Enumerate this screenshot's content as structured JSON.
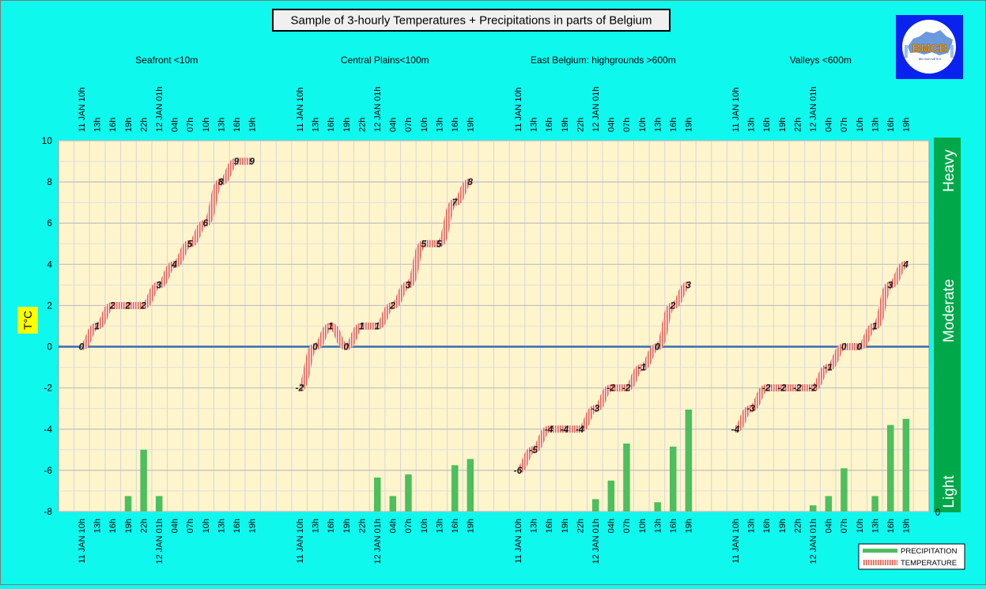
{
  "chart_data": {
    "type": "bar+line",
    "title": "Sample of 3-hourly Temperatures + Precipitations in parts of Belgium",
    "ylabel": "T°C",
    "ylim": [
      -8,
      10
    ],
    "yticks": [
      "10",
      "8",
      "6",
      "4",
      "2",
      "0",
      "-2",
      "-4",
      "-6",
      "-8"
    ],
    "right_axis_label": "0",
    "logo_text": "BMCB",
    "precip_scale_labels": [
      "Light",
      "Moderate",
      "Heavy"
    ],
    "legend": {
      "precipitation": "PRECIPITATION",
      "temperature": "TEMPERATURE"
    },
    "x_labels": [
      "11 JAN 10h",
      "13h",
      "16h",
      "19h",
      "22h",
      "12 JAN 01h",
      "04h",
      "07h",
      "10h",
      "13h",
      "16h",
      "19h"
    ],
    "grid": true,
    "legend_position": "bottom-right",
    "colors": {
      "background": "#0ef8ee",
      "plot": "#fff5cc",
      "precipitation": "#4cbf5e",
      "temperature": "#e7877a",
      "zero_line": "#3a6bb0",
      "scale_bar": "#00a84a",
      "label_box": "#ffff00",
      "logo_bg": "#0a22ee"
    },
    "groups": [
      {
        "name": "Seafront <10m",
        "temperature": [
          0,
          1,
          2,
          2,
          2,
          3,
          4,
          5,
          6,
          8,
          9,
          9
        ],
        "precipitation": [
          -8,
          -8,
          -8,
          -7.25,
          -5,
          -7.25,
          -8,
          -8,
          -8,
          -8,
          -8,
          -8
        ]
      },
      {
        "name": "Central Plains<100m",
        "temperature": [
          -2,
          0,
          1,
          0,
          1,
          1,
          2,
          3,
          5,
          5,
          7,
          8
        ],
        "precipitation": [
          -8,
          -8,
          -8,
          -8,
          -8,
          -6.35,
          -7.25,
          -6.2,
          -8,
          -8,
          -5.75,
          -5.45
        ]
      },
      {
        "name": "East Belgium:     highgrounds >600m",
        "temperature": [
          -6,
          -5,
          -4,
          -4,
          -4,
          -3,
          -2,
          -2,
          -1,
          0,
          2,
          3
        ],
        "precipitation": [
          -8,
          -8,
          -8,
          -8,
          -8,
          -7.4,
          -6.5,
          -4.7,
          -8,
          -7.55,
          -4.85,
          -3.05
        ]
      },
      {
        "name": "Valleys <600m",
        "temperature": [
          -4,
          -3,
          -2,
          -2,
          -2,
          -2,
          -1,
          0,
          0,
          1,
          3,
          4
        ],
        "precipitation": [
          -8,
          -8,
          -8,
          -8,
          -8,
          -7.7,
          -7.25,
          -5.9,
          -8,
          -7.25,
          -3.8,
          -3.5
        ]
      }
    ]
  }
}
